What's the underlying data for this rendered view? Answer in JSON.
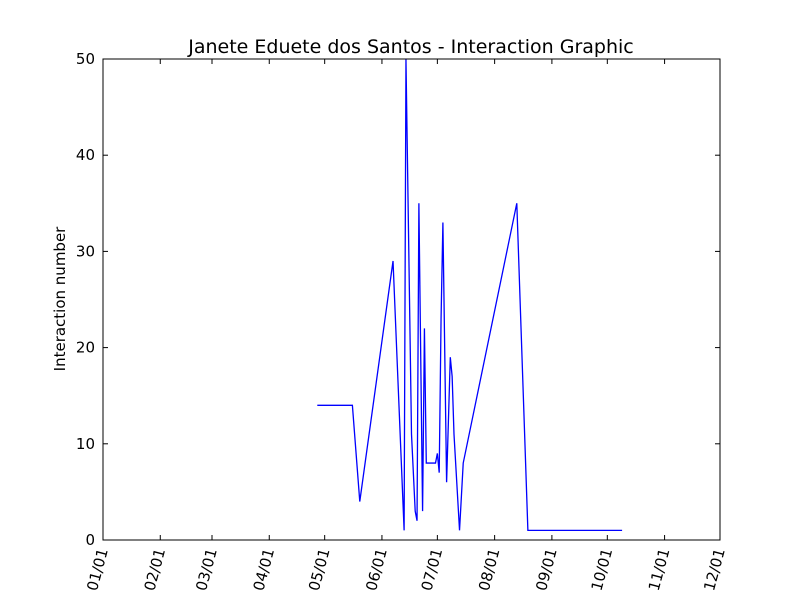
{
  "chart_data": {
    "type": "line",
    "title": "Janete Eduete dos Santos - Interaction Graphic",
    "xlabel": "",
    "ylabel": "Interaction number",
    "ylim": [
      0,
      50
    ],
    "xlim": [
      "01/01",
      "12/01"
    ],
    "x_ticks": [
      "01/01",
      "02/01",
      "03/01",
      "04/01",
      "05/01",
      "06/01",
      "07/01",
      "08/01",
      "09/01",
      "10/01",
      "11/01",
      "12/01"
    ],
    "y_ticks": [
      0,
      10,
      20,
      30,
      40,
      50
    ],
    "grid": false,
    "line_color": "#0000ff",
    "series": [
      {
        "x": [
          "04/27",
          "05/16",
          "05/20",
          "06/07",
          "06/13",
          "06/14",
          "06/17",
          "06/19",
          "06/20",
          "06/21",
          "06/23",
          "06/24",
          "06/25",
          "06/26",
          "06/28",
          "06/30",
          "07/01",
          "07/02",
          "07/03",
          "07/04",
          "07/06",
          "07/08",
          "07/09",
          "07/10",
          "07/13",
          "07/15",
          "08/13",
          "08/19",
          "09/10",
          "10/09"
        ],
        "y": [
          14,
          14,
          4,
          29,
          1,
          50,
          11,
          3,
          2,
          35,
          3,
          22,
          8,
          8,
          8,
          8,
          9,
          7,
          23,
          33,
          6,
          19,
          17,
          11,
          1,
          8,
          35,
          1,
          1,
          1
        ]
      }
    ]
  }
}
